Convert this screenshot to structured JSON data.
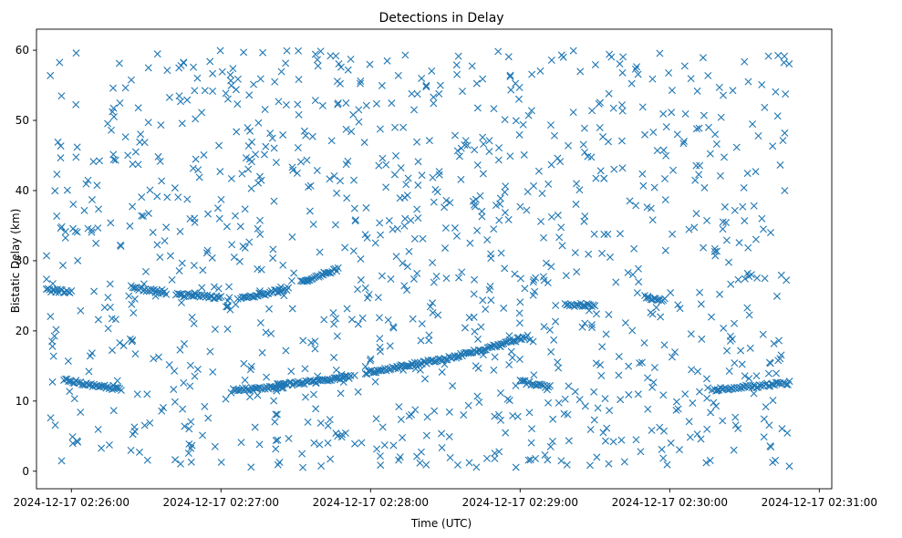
{
  "chart_data": {
    "type": "scatter",
    "title": "Detections in Delay",
    "xlabel": "Time (UTC)",
    "ylabel": "Bistatic Delay (km)",
    "x_unit": "time (UTC)",
    "xlim": [
      "2024-12-17 02:25:46",
      "2024-12-17 02:31:05"
    ],
    "ylim": [
      -2.5,
      63
    ],
    "x_ticks": [
      "2024-12-17 02:26:00",
      "2024-12-17 02:27:00",
      "2024-12-17 02:28:00",
      "2024-12-17 02:29:00",
      "2024-12-17 02:30:00",
      "2024-12-17 02:31:00"
    ],
    "y_ticks": [
      0,
      10,
      20,
      30,
      40,
      50,
      60
    ],
    "grid": false,
    "legend": null,
    "marker": "x",
    "color": "#1f77b4",
    "time_range": [
      "2024-12-17 02:25:50",
      "2024-12-17 02:30:48"
    ],
    "tracks": [
      {
        "x": [
          "2024-12-17 02:25:50",
          "2024-12-17 02:26:00"
        ],
        "y": [
          25.8,
          25.6
        ]
      },
      {
        "x": [
          "2024-12-17 02:25:57",
          "2024-12-17 02:26:20"
        ],
        "y": [
          13.0,
          11.6
        ]
      },
      {
        "x": [
          "2024-12-17 02:26:24",
          "2024-12-17 02:26:38"
        ],
        "y": [
          26.2,
          25.4
        ]
      },
      {
        "x": [
          "2024-12-17 02:26:42",
          "2024-12-17 02:27:00"
        ],
        "y": [
          25.2,
          24.8
        ]
      },
      {
        "x": [
          "2024-12-17 02:27:05",
          "2024-12-17 02:27:25"
        ],
        "y": [
          11.6,
          12.0
        ]
      },
      {
        "x": [
          "2024-12-17 02:27:08",
          "2024-12-17 02:27:27"
        ],
        "y": [
          24.6,
          26.0
        ]
      },
      {
        "x": [
          "2024-12-17 02:27:22",
          "2024-12-17 02:27:52"
        ],
        "y": [
          12.2,
          13.4
        ]
      },
      {
        "x": [
          "2024-12-17 02:27:32",
          "2024-12-17 02:27:47"
        ],
        "y": [
          27.0,
          28.8
        ]
      },
      {
        "x": [
          "2024-12-17 02:27:58",
          "2024-12-17 02:28:35"
        ],
        "y": [
          14.0,
          16.4
        ]
      },
      {
        "x": [
          "2024-12-17 02:28:35",
          "2024-12-17 02:29:03"
        ],
        "y": [
          16.4,
          19.2
        ]
      },
      {
        "x": [
          "2024-12-17 02:29:00",
          "2024-12-17 02:29:12"
        ],
        "y": [
          12.8,
          12.0
        ]
      },
      {
        "x": [
          "2024-12-17 02:29:18",
          "2024-12-17 02:29:30"
        ],
        "y": [
          23.8,
          23.6
        ]
      },
      {
        "x": [
          "2024-12-17 02:29:50",
          "2024-12-17 02:29:58"
        ],
        "y": [
          24.8,
          24.4
        ]
      },
      {
        "x": [
          "2024-12-17 02:30:18",
          "2024-12-17 02:30:48"
        ],
        "y": [
          11.6,
          12.6
        ]
      }
    ],
    "noise_rate": "uniform scatter of detections over 0–60 km"
  }
}
